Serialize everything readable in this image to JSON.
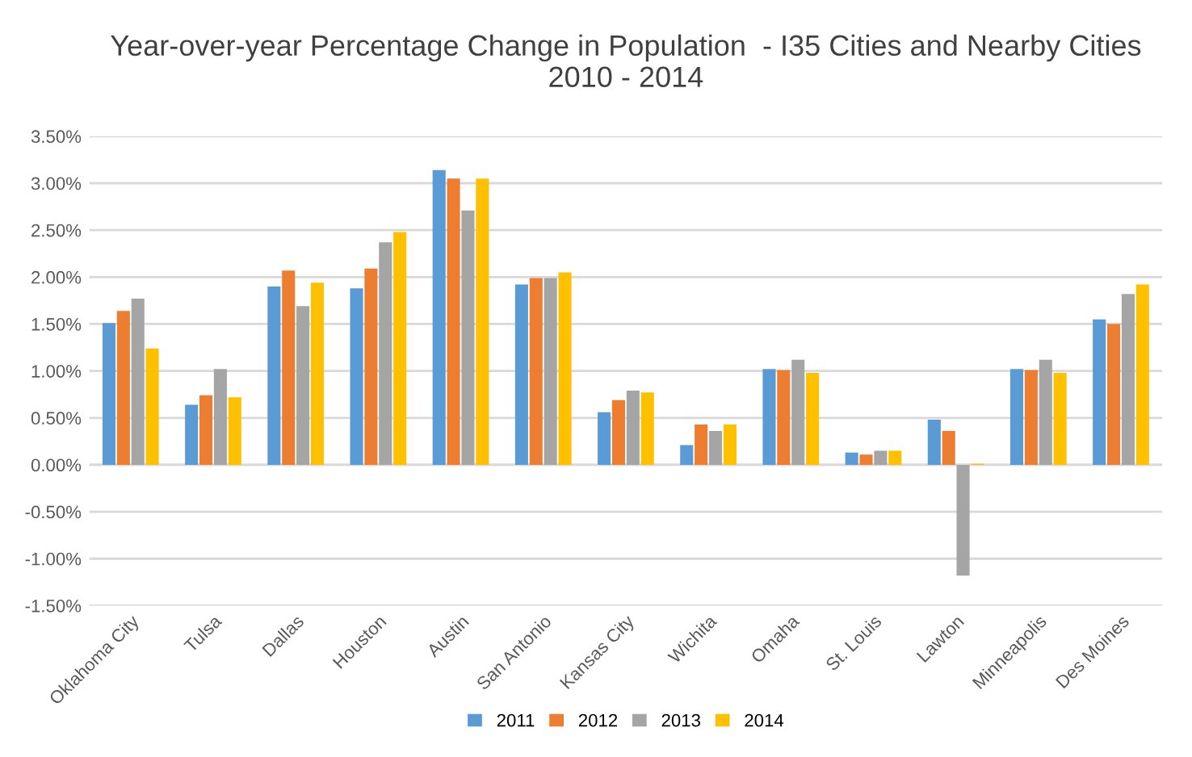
{
  "chart_data": {
    "type": "bar",
    "title": "Year-over-year Percentage Change in Population  - I35 Cities and Nearby Cities\n2010 - 2014",
    "categories": [
      "Oklahoma City",
      "Tulsa",
      "Dallas",
      "Houston",
      "Austin",
      "San Antonio",
      "Kansas City",
      "Wichita",
      "Omaha",
      "St. Louis",
      "Lawton",
      "Minneapolis",
      "Des Moines"
    ],
    "series": [
      {
        "name": "2011",
        "color": "#5b9bd5",
        "values": [
          1.51,
          0.64,
          1.9,
          1.88,
          3.14,
          1.92,
          0.56,
          0.21,
          1.02,
          0.13,
          0.48,
          1.02,
          1.55
        ]
      },
      {
        "name": "2012",
        "color": "#ed7d31",
        "values": [
          1.64,
          0.74,
          2.07,
          2.09,
          3.05,
          1.99,
          0.69,
          0.43,
          1.01,
          0.11,
          0.36,
          1.01,
          1.5
        ]
      },
      {
        "name": "2013",
        "color": "#a5a5a5",
        "values": [
          1.77,
          1.02,
          1.69,
          2.37,
          2.71,
          1.99,
          0.79,
          0.36,
          1.12,
          0.15,
          -1.18,
          1.12,
          1.82
        ]
      },
      {
        "name": "2014",
        "color": "#ffc000",
        "values": [
          1.24,
          0.72,
          1.94,
          2.48,
          3.05,
          2.05,
          0.77,
          0.43,
          0.98,
          0.15,
          0.01,
          0.98,
          1.92
        ]
      }
    ],
    "ylim": [
      -1.5,
      3.5
    ],
    "yticks": [
      {
        "value": -1.5,
        "label": "-1.50%"
      },
      {
        "value": -1.0,
        "label": "-1.00%"
      },
      {
        "value": -0.5,
        "label": "-0.50%"
      },
      {
        "value": 0,
        "label": "0.00%"
      },
      {
        "value": 0.5,
        "label": "0.50%"
      },
      {
        "value": 1.0,
        "label": "1.00%"
      },
      {
        "value": 1.5,
        "label": "1.50%"
      },
      {
        "value": 2.0,
        "label": "2.00%"
      },
      {
        "value": 2.5,
        "label": "2.50%"
      },
      {
        "value": 3.0,
        "label": "3.00%"
      },
      {
        "value": 3.5,
        "label": "3.50%"
      }
    ],
    "grid": "y",
    "legend": "bottom"
  }
}
